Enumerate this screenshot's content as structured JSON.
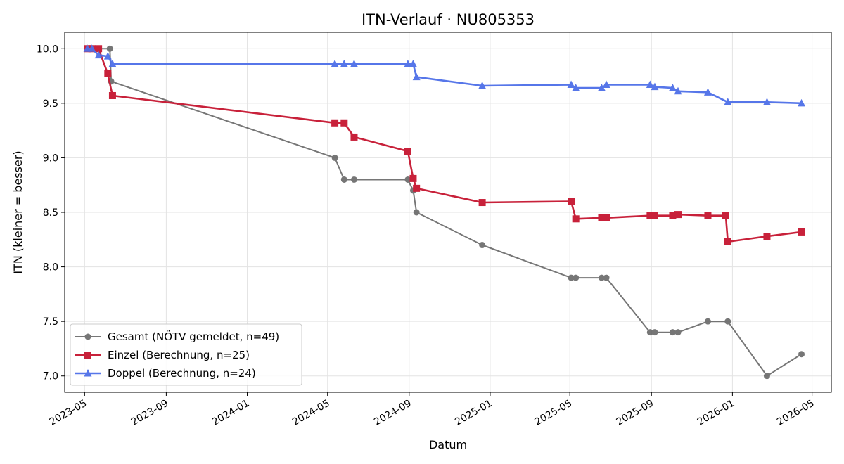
{
  "chart_data": {
    "type": "line",
    "title": "ITN-Verlauf · NU805353",
    "xlabel": "Datum",
    "ylabel": "ITN  (kleiner = besser)",
    "grid": true,
    "legend_position": "lower-left",
    "xlim": [
      "2023-04-01",
      "2026-05-30"
    ],
    "ylim": [
      6.85,
      10.15
    ],
    "x_ticks": [
      "2023-05-01",
      "2023-09-01",
      "2024-01-01",
      "2024-05-01",
      "2024-09-01",
      "2025-01-01",
      "2025-05-01",
      "2025-09-01",
      "2026-01-01",
      "2026-05-01"
    ],
    "x_tick_labels": [
      "2023-05",
      "2023-09",
      "2024-01",
      "2024-05",
      "2024-09",
      "2025-01",
      "2025-05",
      "2025-09",
      "2026-01",
      "2026-05"
    ],
    "y_ticks": [
      7.0,
      7.5,
      8.0,
      8.5,
      9.0,
      9.5,
      10.0
    ],
    "y_tick_labels": [
      "7.0",
      "7.5",
      "8.0",
      "8.5",
      "9.0",
      "9.5",
      "10.0"
    ],
    "series": [
      {
        "name": "Gesamt (NÖTV gemeldet, n=49)",
        "color": "#555555",
        "marker": "circle",
        "x": [
          "2023-05-05",
          "2023-05-12",
          "2023-05-18",
          "2023-06-08",
          "2023-06-10",
          "2024-05-12",
          "2024-05-26",
          "2024-06-10",
          "2024-08-30",
          "2024-09-07",
          "2024-09-12",
          "2024-12-20",
          "2025-05-03",
          "2025-05-10",
          "2025-06-18",
          "2025-06-25",
          "2025-08-30",
          "2025-09-06",
          "2025-10-03",
          "2025-10-11",
          "2025-11-25",
          "2025-12-25",
          "2026-02-22",
          "2026-04-15"
        ],
        "values": [
          10.0,
          10.0,
          10.0,
          10.0,
          9.7,
          9.0,
          8.8,
          8.8,
          8.8,
          8.7,
          8.5,
          8.2,
          7.9,
          7.9,
          7.9,
          7.9,
          7.4,
          7.4,
          7.4,
          7.4,
          7.5,
          7.5,
          7.0,
          7.2
        ]
      },
      {
        "name": "Einzel (Berechnung, n=25)",
        "color": "#c8213a",
        "marker": "square",
        "x": [
          "2023-05-05",
          "2023-05-12",
          "2023-05-22",
          "2023-06-05",
          "2023-06-12",
          "2024-05-12",
          "2024-05-26",
          "2024-06-10",
          "2024-08-30",
          "2024-09-07",
          "2024-09-12",
          "2024-12-20",
          "2025-05-03",
          "2025-05-10",
          "2025-06-18",
          "2025-06-25",
          "2025-08-30",
          "2025-09-06",
          "2025-10-03",
          "2025-10-11",
          "2025-11-25",
          "2025-12-22",
          "2025-12-25",
          "2026-02-22",
          "2026-04-15"
        ],
        "values": [
          10.0,
          10.0,
          10.0,
          9.77,
          9.57,
          9.32,
          9.32,
          9.19,
          9.06,
          8.81,
          8.72,
          8.59,
          8.6,
          8.44,
          8.45,
          8.45,
          8.47,
          8.47,
          8.47,
          8.48,
          8.47,
          8.47,
          8.23,
          8.28,
          8.32
        ]
      },
      {
        "name": "Doppel (Berechnung, n=24)",
        "color": "#4e6fe8",
        "marker": "triangle",
        "x": [
          "2023-05-05",
          "2023-05-12",
          "2023-05-22",
          "2023-06-05",
          "2023-06-12",
          "2024-05-12",
          "2024-05-26",
          "2024-06-10",
          "2024-08-30",
          "2024-09-07",
          "2024-09-12",
          "2024-12-20",
          "2025-05-03",
          "2025-05-10",
          "2025-06-18",
          "2025-06-25",
          "2025-08-30",
          "2025-09-06",
          "2025-10-03",
          "2025-10-11",
          "2025-11-25",
          "2025-12-25",
          "2026-02-22",
          "2026-04-15"
        ],
        "values": [
          10.0,
          10.0,
          9.94,
          9.93,
          9.86,
          9.86,
          9.86,
          9.86,
          9.86,
          9.86,
          9.74,
          9.66,
          9.67,
          9.64,
          9.64,
          9.67,
          9.67,
          9.65,
          9.64,
          9.61,
          9.6,
          9.51,
          9.51,
          9.5
        ]
      }
    ]
  }
}
